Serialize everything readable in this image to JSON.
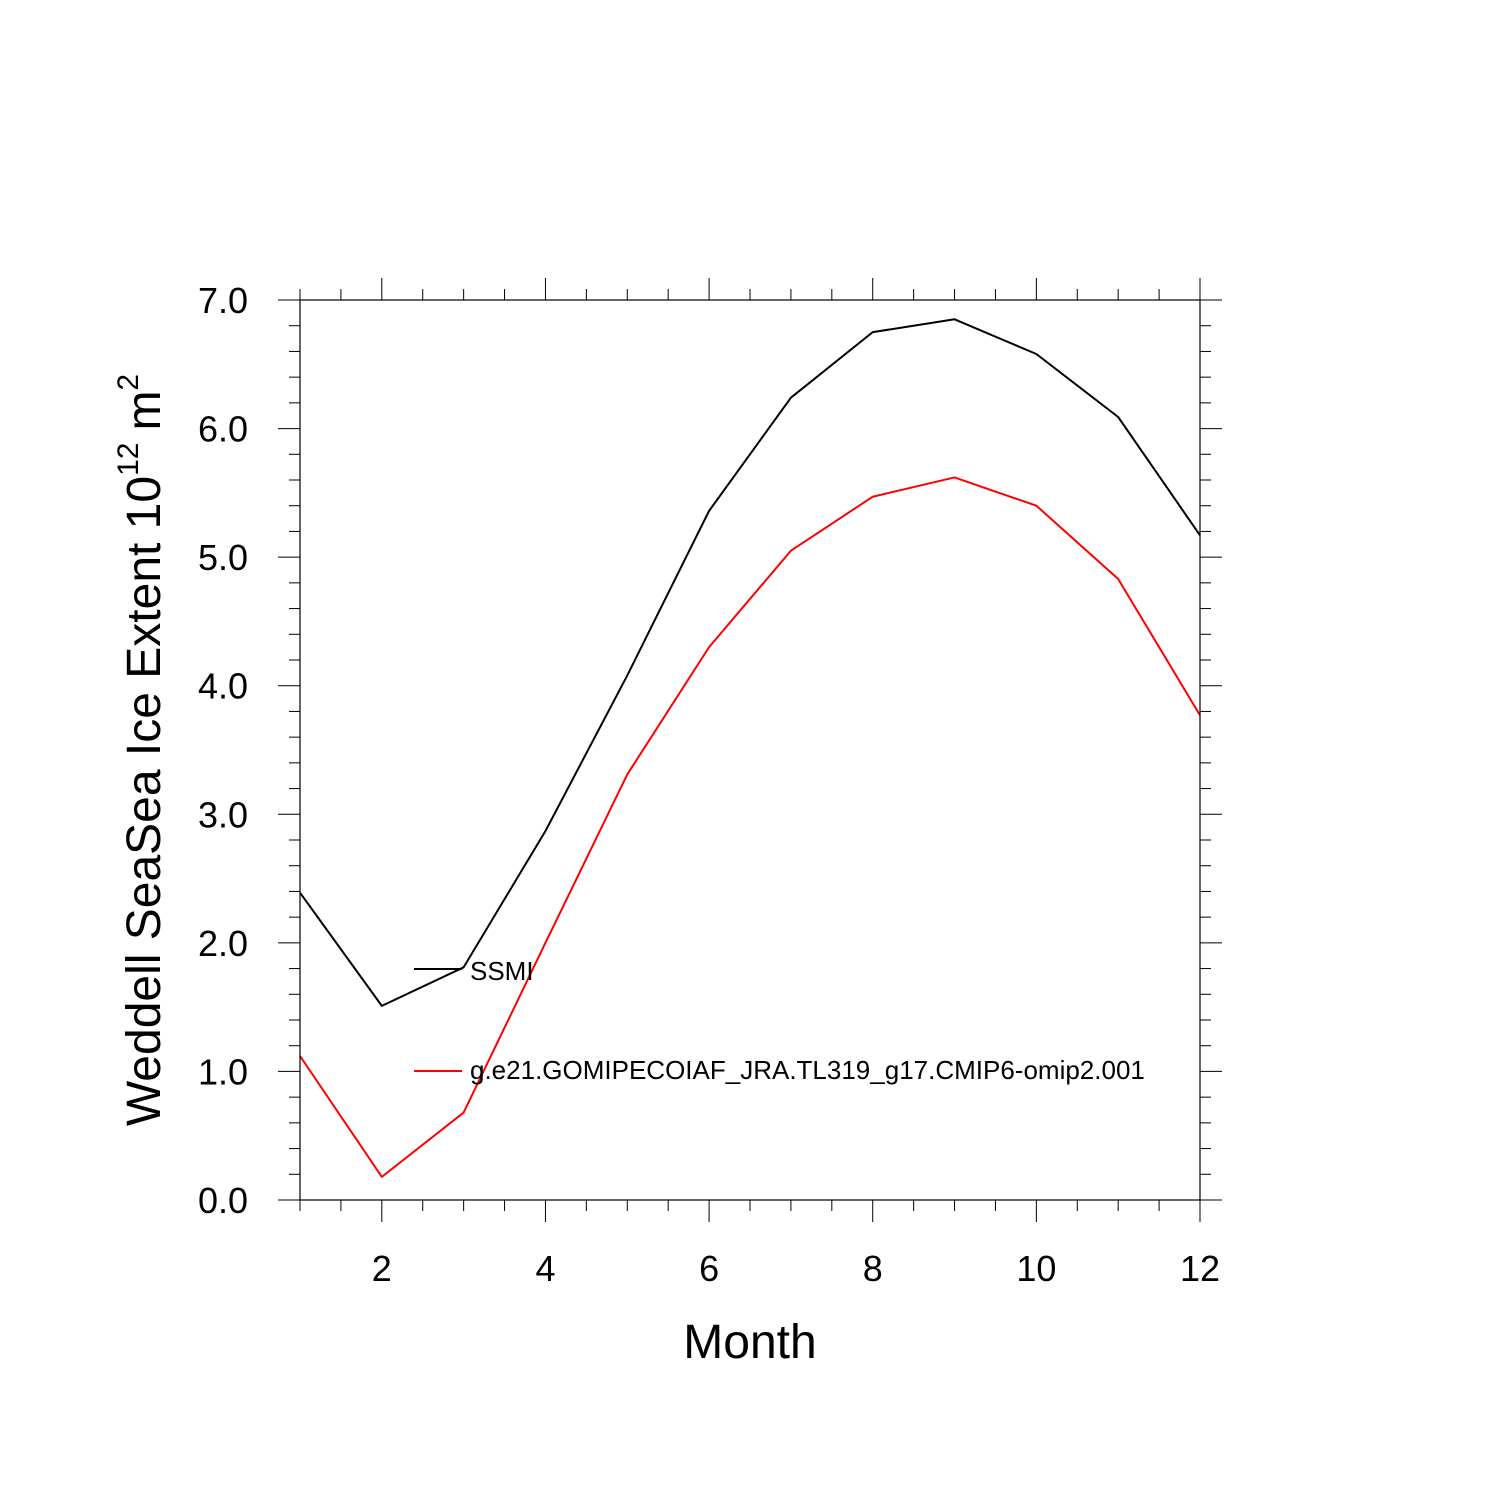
{
  "chart_data": {
    "type": "line",
    "title": "",
    "xlabel": "Month",
    "ylabel": {
      "main": "Weddell SeaSea Ice Extent 10",
      "superscript": "12",
      "unit": "m",
      "unit_superscript": "2"
    },
    "xlim": [
      1,
      12
    ],
    "ylim": [
      0,
      7
    ],
    "x": [
      1,
      2,
      3,
      4,
      5,
      6,
      7,
      8,
      9,
      10,
      11,
      12
    ],
    "x_ticks": [
      2,
      4,
      6,
      8,
      10,
      12
    ],
    "x_tick_labels": [
      "2",
      "4",
      "6",
      "8",
      "10",
      "12"
    ],
    "y_ticks": [
      0,
      1,
      2,
      3,
      4,
      5,
      6,
      7
    ],
    "y_tick_labels": [
      "0.0",
      "1.0",
      "2.0",
      "3.0",
      "4.0",
      "5.0",
      "6.0",
      "7.0"
    ],
    "grid": false,
    "legend_position": "center-left",
    "series": [
      {
        "name": "SSMI",
        "color": "#000000",
        "values": [
          2.39,
          1.51,
          1.81,
          2.87,
          4.08,
          5.36,
          6.24,
          6.75,
          6.85,
          6.58,
          6.09,
          5.17
        ]
      },
      {
        "name": "g.e21.GOMIPECOIAF_JRA.TL319_g17.CMIP6-omip2.001",
        "color": "#ff0000",
        "values": [
          1.12,
          0.18,
          0.68,
          2.0,
          3.31,
          4.3,
          5.05,
          5.47,
          5.62,
          5.4,
          4.83,
          3.77
        ]
      }
    ]
  }
}
